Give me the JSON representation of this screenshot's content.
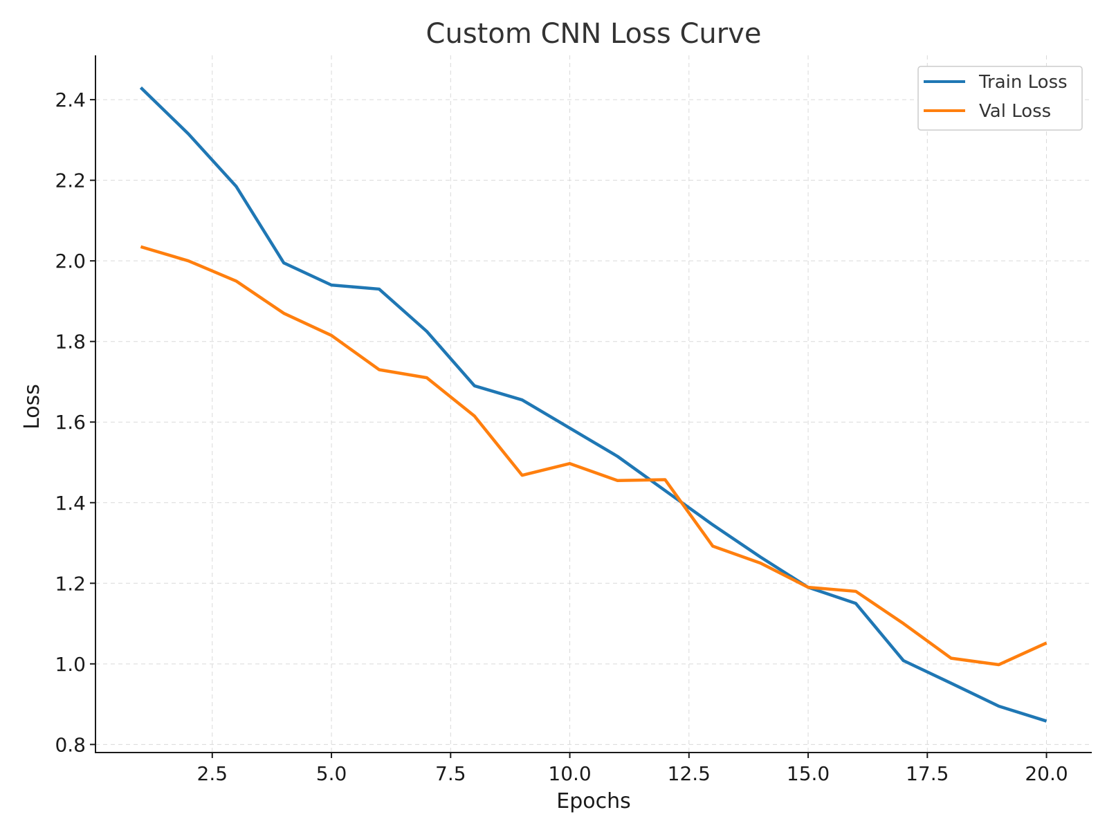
{
  "chart_data": {
    "type": "line",
    "title": "Custom CNN Loss Curve",
    "xlabel": "Epochs",
    "ylabel": "Loss",
    "xlim": [
      0.05,
      20.95
    ],
    "ylim": [
      0.78,
      2.51
    ],
    "xticks": [
      2.5,
      5.0,
      7.5,
      10.0,
      12.5,
      15.0,
      17.5,
      20.0
    ],
    "xtick_labels": [
      "2.5",
      "5.0",
      "7.5",
      "10.0",
      "12.5",
      "15.0",
      "17.5",
      "20.0"
    ],
    "yticks": [
      0.8,
      1.0,
      1.2,
      1.4,
      1.6,
      1.8,
      2.0,
      2.2,
      2.4
    ],
    "ytick_labels": [
      "0.8",
      "1.0",
      "1.2",
      "1.4",
      "1.6",
      "1.8",
      "2.0",
      "2.2",
      "2.4"
    ],
    "grid": true,
    "legend_position": "top-right",
    "x": [
      1,
      2,
      3,
      4,
      5,
      6,
      7,
      8,
      9,
      10,
      11,
      12,
      13,
      14,
      15,
      16,
      17,
      18,
      19,
      20
    ],
    "series": [
      {
        "name": "Train Loss",
        "color": "#1f77b4",
        "values": [
          2.43,
          2.315,
          2.185,
          1.995,
          1.94,
          1.93,
          1.825,
          1.69,
          1.655,
          1.585,
          1.515,
          1.43,
          1.345,
          1.265,
          1.19,
          1.15,
          1.008,
          0.952,
          0.895,
          0.858
        ]
      },
      {
        "name": "Val Loss",
        "color": "#ff7f0e",
        "values": [
          2.035,
          2.0,
          1.95,
          1.87,
          1.815,
          1.73,
          1.71,
          1.615,
          1.468,
          1.497,
          1.455,
          1.457,
          1.292,
          1.25,
          1.19,
          1.18,
          1.1,
          1.014,
          0.998,
          1.052
        ]
      }
    ]
  }
}
